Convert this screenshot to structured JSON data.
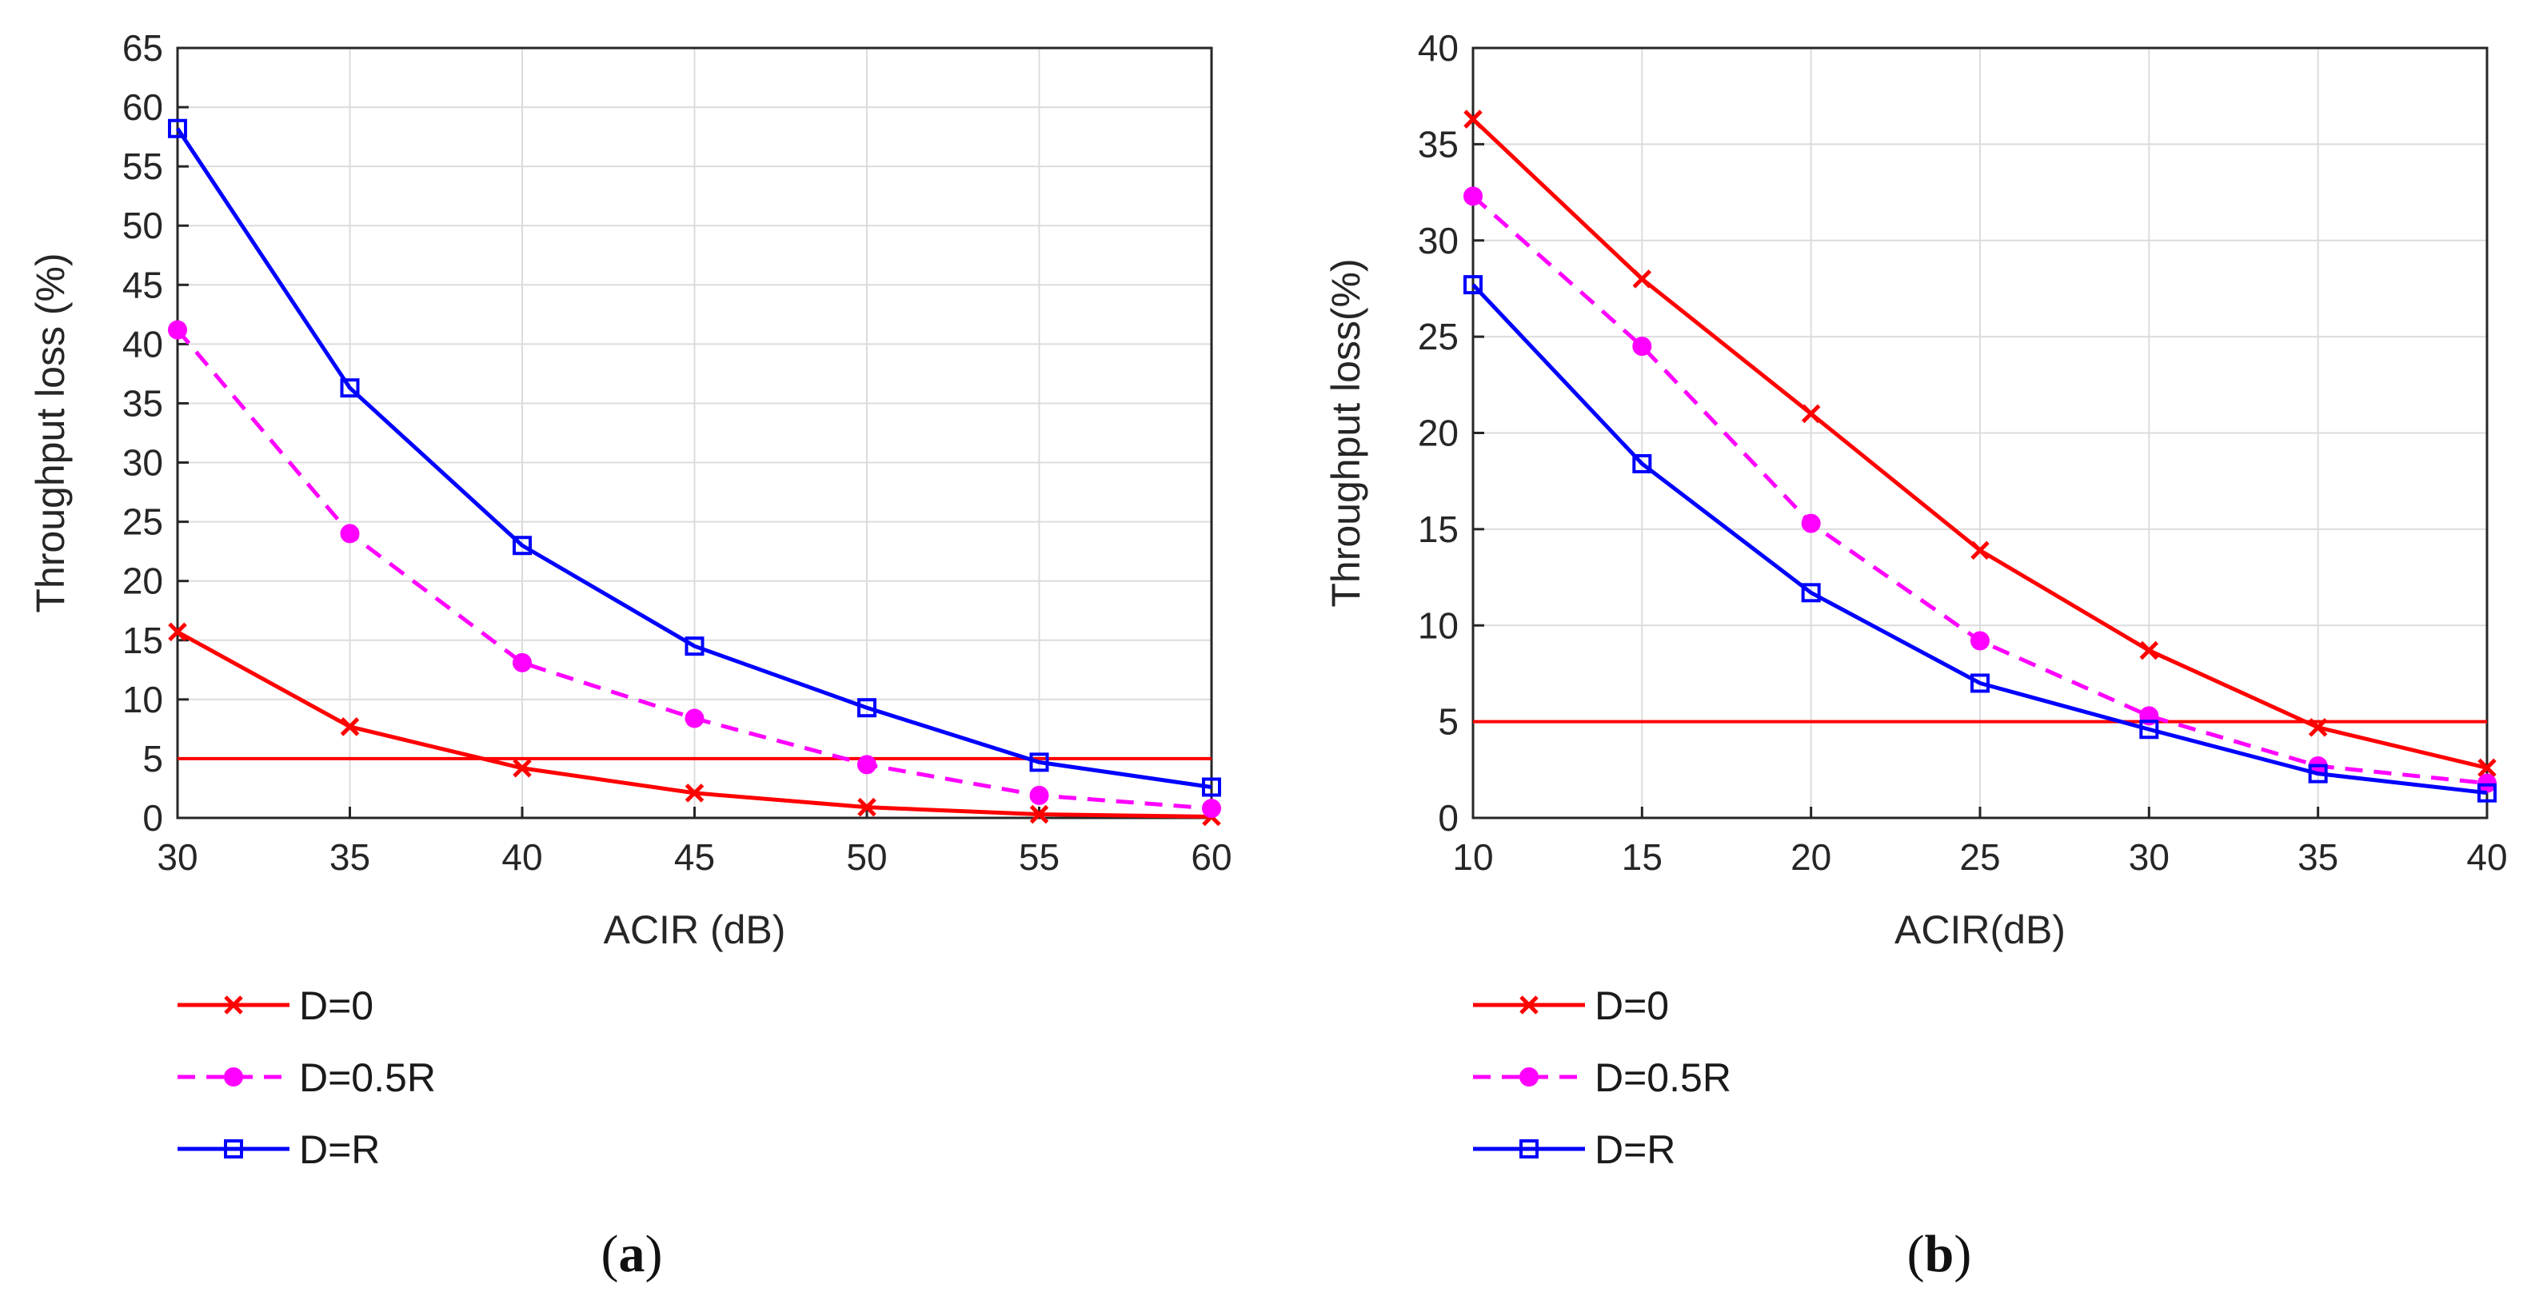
{
  "chart_data": [
    {
      "panel_label": "a",
      "type": "line",
      "xlabel": "ACIR (dB)",
      "ylabel": "Throughput loss (%)",
      "xlim": [
        30,
        60
      ],
      "ylim": [
        0,
        65
      ],
      "xticks": [
        30,
        35,
        40,
        45,
        50,
        55,
        60
      ],
      "yticks": [
        0,
        5,
        10,
        15,
        20,
        25,
        30,
        35,
        40,
        45,
        50,
        55,
        60,
        65
      ],
      "grid": true,
      "x": [
        30,
        35,
        40,
        45,
        50,
        55,
        60
      ],
      "series": [
        {
          "name": "D=0",
          "color": "#ff0000",
          "marker": "x",
          "dash": "solid",
          "values": [
            15.7,
            7.7,
            4.2,
            2.1,
            0.9,
            0.3,
            0.1
          ]
        },
        {
          "name": "D=0.5R",
          "color": "#ff00ff",
          "marker": "o",
          "dash": "dashed",
          "values": [
            41.2,
            24.0,
            13.1,
            8.4,
            4.5,
            1.9,
            0.8
          ]
        },
        {
          "name": "D=R",
          "color": "#0000ff",
          "marker": "s",
          "dash": "solid",
          "values": [
            58.2,
            36.3,
            23.0,
            14.5,
            9.3,
            4.7,
            2.6
          ]
        }
      ],
      "threshold": {
        "value": 5,
        "color": "#ff0000"
      },
      "legend_placement": "below-left"
    },
    {
      "panel_label": "b",
      "type": "line",
      "xlabel": "ACIR(dB)",
      "ylabel": "Throughput loss(%)",
      "xlim": [
        10,
        40
      ],
      "ylim": [
        0,
        40
      ],
      "xticks": [
        10,
        15,
        20,
        25,
        30,
        35,
        40
      ],
      "yticks": [
        0,
        5,
        10,
        15,
        20,
        25,
        30,
        35,
        40
      ],
      "grid": true,
      "x": [
        10,
        15,
        20,
        25,
        30,
        35,
        40
      ],
      "series": [
        {
          "name": "D=0",
          "color": "#ff0000",
          "marker": "x",
          "dash": "solid",
          "values": [
            36.3,
            28.0,
            21.0,
            13.9,
            8.7,
            4.7,
            2.6
          ]
        },
        {
          "name": "D=0.5R",
          "color": "#ff00ff",
          "marker": "o",
          "dash": "dashed",
          "values": [
            32.3,
            24.5,
            15.3,
            9.2,
            5.3,
            2.7,
            1.8
          ]
        },
        {
          "name": "D=R",
          "color": "#0000ff",
          "marker": "s",
          "dash": "solid",
          "values": [
            27.7,
            18.4,
            11.7,
            7.0,
            4.6,
            2.3,
            1.3
          ]
        }
      ],
      "threshold": {
        "value": 5,
        "color": "#ff0000"
      },
      "legend_placement": "below-left"
    }
  ]
}
